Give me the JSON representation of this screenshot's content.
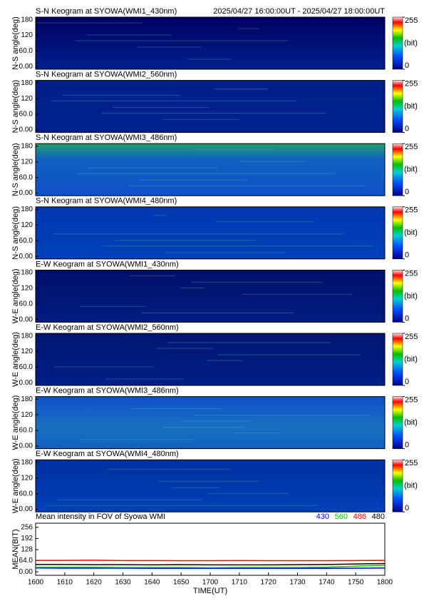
{
  "chart_data": [
    {
      "type": "heatmap",
      "title": "S-N Keogram at SYOWA(WMI1_430nm)",
      "subtitle": "2025/04/27 16:00:00UT - 2025/04/27 18:00:00UT",
      "ylabel": "N-S angle(deg)",
      "ylim": [
        -10,
        190
      ],
      "yticks": [
        {
          "value": 0,
          "label": "0.00"
        },
        {
          "value": 60,
          "label": "60.0"
        },
        120,
        180
      ],
      "clim": [
        0,
        255
      ],
      "cticks": [
        0,
        255
      ],
      "clabel": "(bit)"
    },
    {
      "type": "heatmap",
      "title": "S-N Keogram at SYOWA(WMI2_560nm)",
      "ylabel": "N-S angle(deg)",
      "ylim": [
        -10,
        190
      ],
      "yticks": [
        {
          "value": 0,
          "label": "0.00"
        },
        {
          "value": 60,
          "label": "60.0"
        },
        120,
        180
      ],
      "clim": [
        0,
        255
      ],
      "cticks": [
        0,
        255
      ],
      "clabel": "(bit)"
    },
    {
      "type": "heatmap",
      "title": "S-N Keogram at SYOWA(WMI3_486nm)",
      "ylabel": "N-S angle(deg)",
      "ylim": [
        -10,
        190
      ],
      "yticks": [
        {
          "value": 0,
          "label": "0.00"
        },
        {
          "value": 60,
          "label": "60.0"
        },
        120,
        180
      ],
      "clim": [
        0,
        255
      ],
      "cticks": [
        0,
        255
      ],
      "clabel": "(bit)"
    },
    {
      "type": "heatmap",
      "title": "S-N Keogram at SYOWA(WMI4_480nm)",
      "ylabel": "N-S angle(deg)",
      "ylim": [
        -10,
        190
      ],
      "yticks": [
        {
          "value": 0,
          "label": "0.00"
        },
        {
          "value": 60,
          "label": "60.0"
        },
        120,
        180
      ],
      "clim": [
        0,
        255
      ],
      "cticks": [
        0,
        255
      ],
      "clabel": "(bit)"
    },
    {
      "type": "heatmap",
      "title": "E-W Keogram at SYOWA(WMI1_430nm)",
      "ylabel": "W-E angle(deg)",
      "ylim": [
        -10,
        190
      ],
      "yticks": [
        {
          "value": 0,
          "label": "0.00"
        },
        {
          "value": 60,
          "label": "60.0"
        },
        120,
        180
      ],
      "clim": [
        0,
        255
      ],
      "cticks": [
        0,
        255
      ],
      "clabel": "(bit)"
    },
    {
      "type": "heatmap",
      "title": "E-W Keogram at SYOWA(WMI2_560nm)",
      "ylabel": "W-E angle(deg)",
      "ylim": [
        -10,
        190
      ],
      "yticks": [
        {
          "value": 0,
          "label": "0.00"
        },
        {
          "value": 60,
          "label": "60.0"
        },
        120,
        180
      ],
      "clim": [
        0,
        255
      ],
      "cticks": [
        0,
        255
      ],
      "clabel": "(bit)"
    },
    {
      "type": "heatmap",
      "title": "E-W Keogram at SYOWA(WMI3_486nm)",
      "ylabel": "W-E angle(deg)",
      "ylim": [
        -10,
        190
      ],
      "yticks": [
        {
          "value": 0,
          "label": "0.00"
        },
        {
          "value": 60,
          "label": "60.0"
        },
        120,
        180
      ],
      "clim": [
        0,
        255
      ],
      "cticks": [
        0,
        255
      ],
      "clabel": "(bit)"
    },
    {
      "type": "heatmap",
      "title": "E-W Keogram at SYOWA(WMI4_480nm)",
      "ylabel": "W-E angle(deg)",
      "ylim": [
        -10,
        190
      ],
      "yticks": [
        {
          "value": 0,
          "label": "0.00"
        },
        {
          "value": 60,
          "label": "60.0"
        },
        120,
        180
      ],
      "clim": [
        0,
        255
      ],
      "cticks": [
        0,
        255
      ],
      "clabel": "(bit)"
    },
    {
      "type": "line",
      "title": "Mean intensity in FOV of Syowa WMI",
      "xlabel": "TIME(UT)",
      "ylabel": "MEAN(BIT)",
      "x": [
        "1600",
        "1610",
        "1620",
        "1630",
        "1640",
        "1650",
        "1700",
        "1710",
        "1720",
        "1730",
        "1740",
        "1750",
        "1800"
      ],
      "ylim": [
        -20,
        280
      ],
      "yticks": [
        {
          "value": 0,
          "label": "0.00"
        },
        {
          "value": 64,
          "label": "64.0"
        },
        128,
        192,
        256
      ],
      "legend": "top-right",
      "series": [
        {
          "name": "430",
          "color": "#0000ff",
          "values": [
            22,
            21,
            21,
            21,
            20,
            20,
            20,
            20,
            20,
            20,
            20,
            21,
            22
          ]
        },
        {
          "name": "560",
          "color": "#00cc00",
          "values": [
            26,
            26,
            26,
            25,
            25,
            25,
            24,
            25,
            25,
            25,
            27,
            33,
            38
          ]
        },
        {
          "name": "486",
          "color": "#ff0000",
          "values": [
            66,
            66,
            67,
            65,
            65,
            64,
            64,
            65,
            64,
            64,
            64,
            65,
            66
          ]
        },
        {
          "name": "480",
          "color": "#000000",
          "values": [
            42,
            42,
            41,
            41,
            40,
            41,
            40,
            40,
            40,
            41,
            42,
            45,
            48
          ]
        }
      ]
    }
  ]
}
